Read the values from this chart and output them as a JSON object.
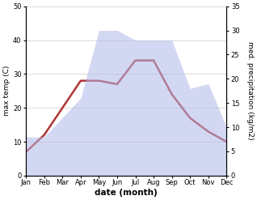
{
  "months": [
    "Jan",
    "Feb",
    "Mar",
    "Apr",
    "May",
    "Jun",
    "Jul",
    "Aug",
    "Sep",
    "Oct",
    "Nov",
    "Dec"
  ],
  "max_temp_C": [
    7,
    12,
    20,
    28,
    28,
    27,
    34,
    34,
    24,
    17,
    13,
    10
  ],
  "precip_kg": [
    8,
    8,
    12,
    16,
    30,
    30,
    28,
    28,
    28,
    18,
    19,
    10
  ],
  "temp_ylim": [
    0,
    50
  ],
  "precip_ylim": [
    0,
    35
  ],
  "temp_yticks": [
    0,
    10,
    20,
    30,
    40,
    50
  ],
  "precip_yticks": [
    0,
    5,
    10,
    15,
    20,
    25,
    30,
    35
  ],
  "temp_line_color": "#b03535",
  "precip_fill_color": "#b0b8e8",
  "precip_fill_alpha": 0.55,
  "xlabel": "date (month)",
  "ylabel_left": "max temp (C)",
  "ylabel_right": "med. precipitation (kg/m2)",
  "line_width": 1.8,
  "grid_color": "#cccccc",
  "xlabel_fontsize": 7.5,
  "ylabel_fontsize": 6.5,
  "tick_fontsize": 6.0
}
